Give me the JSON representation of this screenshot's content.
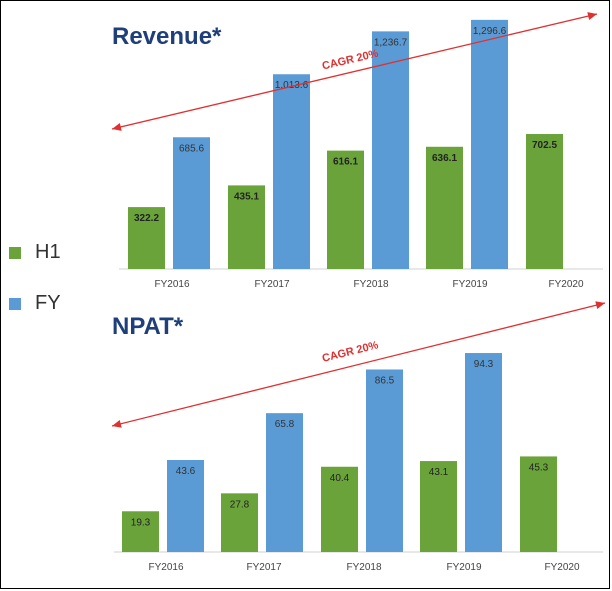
{
  "colors": {
    "h1": "#6aa33a",
    "fy": "#5b9bd5",
    "title": "#1f3f7a",
    "arrow": "#e03030"
  },
  "legend": [
    {
      "label": "H1",
      "color": "#6aa33a"
    },
    {
      "label": "FY",
      "color": "#5b9bd5"
    }
  ],
  "chart_data": [
    {
      "type": "bar",
      "title": "Revenue*",
      "annotation": "CAGR 20%",
      "categories": [
        "FY2016",
        "FY2017",
        "FY2018",
        "FY2019",
        "FY2020"
      ],
      "series": [
        {
          "name": "H1",
          "values": [
            322.2,
            435.1,
            616.1,
            636.1,
            702.5
          ],
          "labels": [
            "322.2",
            "435.1",
            "616.1",
            "636.1",
            "702.5"
          ]
        },
        {
          "name": "FY",
          "values": [
            685.6,
            1013.6,
            1236.7,
            1296.6,
            null
          ],
          "labels": [
            "685.6",
            "1,013.6",
            "1,236.7",
            "1,296.6",
            ""
          ]
        }
      ],
      "ylim": [
        0,
        1400
      ]
    },
    {
      "type": "bar",
      "title": "NPAT*",
      "annotation": "CAGR 20%",
      "categories": [
        "FY2016",
        "FY2017",
        "FY2018",
        "FY2019",
        "FY2020"
      ],
      "series": [
        {
          "name": "H1",
          "values": [
            19.3,
            27.8,
            40.4,
            43.1,
            45.3
          ],
          "labels": [
            "19.3",
            "27.8",
            "40.4",
            "43.1",
            "45.3"
          ]
        },
        {
          "name": "FY",
          "values": [
            43.6,
            65.8,
            86.5,
            94.3,
            null
          ],
          "labels": [
            "43.6",
            "65.8",
            "86.5",
            "94.3",
            ""
          ]
        }
      ],
      "ylim": [
        0,
        100
      ]
    }
  ]
}
